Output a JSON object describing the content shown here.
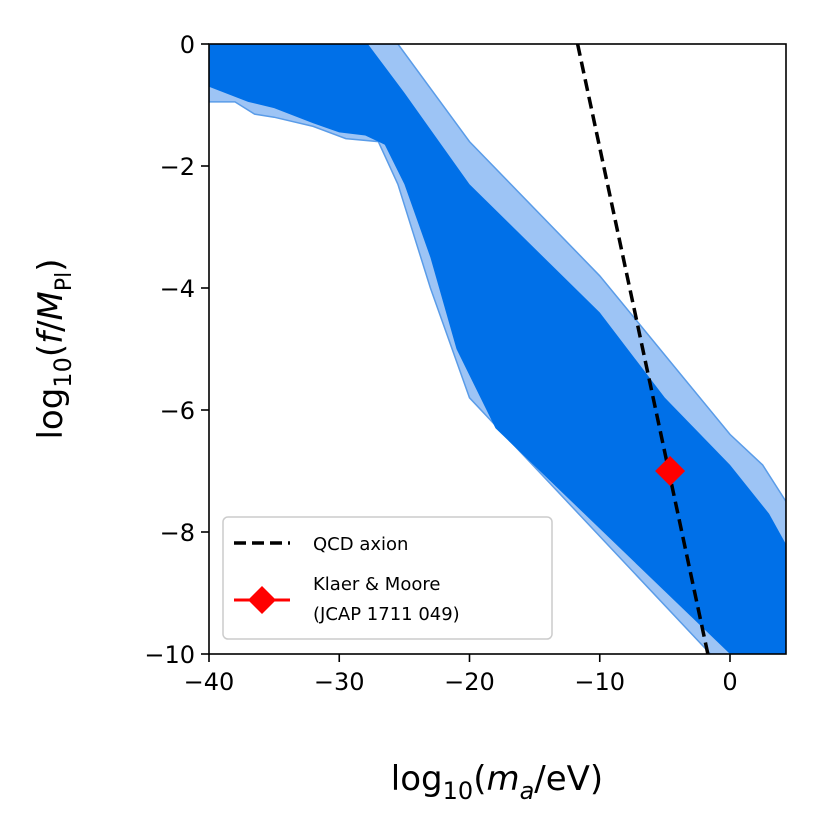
{
  "chart_data": {
    "type": "area",
    "xlabel": {
      "prefix": "log",
      "sub": "10",
      "open": "(",
      "var": "m",
      "varsub": "a",
      "rest": "/eV)"
    },
    "ylabel": {
      "prefix": "log",
      "sub": "10",
      "open": "(",
      "var": "f",
      "slash": "/",
      "var2": "M",
      "var2sub": "Pl",
      "close": ")"
    },
    "xlim": [
      -40,
      4.3
    ],
    "ylim": [
      -10,
      0
    ],
    "xticks": [
      -40,
      -30,
      -20,
      -10,
      0
    ],
    "xtick_labels": [
      "−40",
      "−30",
      "−20",
      "−10",
      "0"
    ],
    "yticks": [
      0,
      -2,
      -4,
      -6,
      -8,
      -10
    ],
    "ytick_labels": [
      "0",
      "−2",
      "−4",
      "−6",
      "−8",
      "−10"
    ],
    "grid": false,
    "legend_position": "lower-left",
    "colors": {
      "outer_band": "#9dc4f5",
      "outer_edge": "#5a9ce8",
      "inner_band": "#0070e8",
      "qcd_line": "#000000",
      "marker": "#ff0000"
    },
    "series": [
      {
        "kind": "band",
        "role": "outer",
        "upper": [
          [
            -40,
            0
          ],
          [
            -25.5,
            0
          ],
          [
            -20,
            -1.6
          ],
          [
            -10,
            -3.8
          ],
          [
            -5,
            -5.1
          ],
          [
            0,
            -6.4
          ],
          [
            2.5,
            -6.9
          ],
          [
            4.3,
            -7.5
          ]
        ],
        "lower": [
          [
            4.3,
            -10
          ],
          [
            -1.5,
            -10
          ],
          [
            -20,
            -5.8
          ],
          [
            -23,
            -4.0
          ],
          [
            -25.5,
            -2.3
          ],
          [
            -27,
            -1.6
          ],
          [
            -29.5,
            -1.55
          ],
          [
            -32,
            -1.35
          ],
          [
            -35,
            -1.2
          ],
          [
            -36.5,
            -1.15
          ],
          [
            -38,
            -0.95
          ],
          [
            -40,
            -0.95
          ]
        ]
      },
      {
        "kind": "band",
        "role": "inner",
        "upper": [
          [
            -40,
            0
          ],
          [
            -27.8,
            0
          ],
          [
            -25,
            -0.8
          ],
          [
            -20,
            -2.3
          ],
          [
            -10,
            -4.4
          ],
          [
            -5,
            -5.8
          ],
          [
            0,
            -6.9
          ],
          [
            3,
            -7.7
          ],
          [
            4.3,
            -8.2
          ]
        ],
        "lower": [
          [
            4.3,
            -10
          ],
          [
            0,
            -10
          ],
          [
            -18,
            -6.3
          ],
          [
            -21,
            -5.0
          ],
          [
            -23,
            -3.5
          ],
          [
            -25,
            -2.3
          ],
          [
            -26.5,
            -1.65
          ],
          [
            -28,
            -1.5
          ],
          [
            -30,
            -1.45
          ],
          [
            -32,
            -1.3
          ],
          [
            -35,
            -1.05
          ],
          [
            -37,
            -0.95
          ],
          [
            -40,
            -0.7
          ]
        ]
      },
      {
        "kind": "line",
        "name": "QCD axion",
        "style": "dashed",
        "points": [
          [
            -11.7,
            0
          ],
          [
            -1.7,
            -10
          ]
        ]
      },
      {
        "kind": "marker",
        "name": "Klaer & Moore",
        "name2": "(JCAP 1711 049)",
        "points": [
          [
            -4.6,
            -7.0
          ]
        ]
      }
    ]
  }
}
